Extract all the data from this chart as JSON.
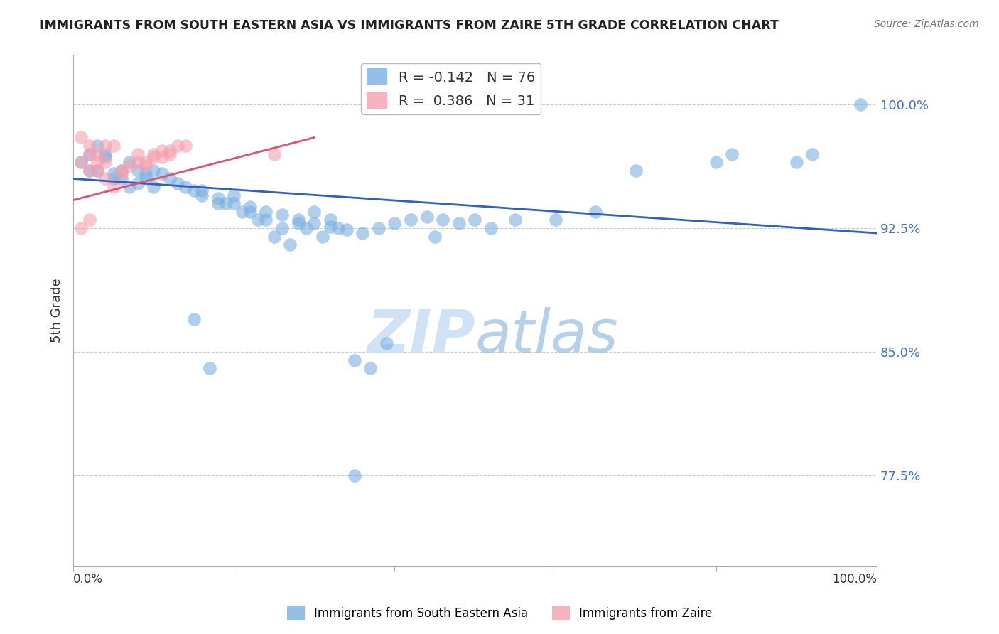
{
  "title": "IMMIGRANTS FROM SOUTH EASTERN ASIA VS IMMIGRANTS FROM ZAIRE 5TH GRADE CORRELATION CHART",
  "source": "Source: ZipAtlas.com",
  "ylabel": "5th Grade",
  "ytick_labels": [
    "77.5%",
    "85.0%",
    "92.5%",
    "100.0%"
  ],
  "ytick_values": [
    0.775,
    0.85,
    0.925,
    1.0
  ],
  "xlim": [
    0.0,
    1.0
  ],
  "ylim": [
    0.72,
    1.03
  ],
  "legend_blue_r": "-0.142",
  "legend_blue_n": "76",
  "legend_pink_r": "0.386",
  "legend_pink_n": "31",
  "blue_color": "#7ab0e0",
  "pink_color": "#f4a0b0",
  "blue_line_color": "#3060c0",
  "pink_line_color": "#e05070",
  "watermark_zip": "ZIP",
  "watermark_atlas": "atlas",
  "blue_scatter_x": [
    0.02,
    0.03,
    0.01,
    0.02,
    0.04,
    0.03,
    0.05,
    0.04,
    0.06,
    0.05,
    0.07,
    0.06,
    0.08,
    0.07,
    0.09,
    0.08,
    0.1,
    0.09,
    0.11,
    0.1,
    0.12,
    0.13,
    0.15,
    0.16,
    0.18,
    0.2,
    0.22,
    0.24,
    0.26,
    0.28,
    0.3,
    0.32,
    0.34,
    0.36,
    0.38,
    0.4,
    0.42,
    0.44,
    0.46,
    0.48,
    0.22,
    0.24,
    0.26,
    0.28,
    0.3,
    0.32,
    0.18,
    0.2,
    0.14,
    0.16,
    0.5,
    0.52,
    0.6,
    0.65,
    0.7,
    0.8,
    0.82,
    0.9,
    0.92,
    0.98,
    0.25,
    0.27,
    0.29,
    0.31,
    0.33,
    0.19,
    0.21,
    0.23,
    0.35,
    0.37,
    0.39,
    0.15,
    0.17,
    0.45,
    0.55,
    0.35
  ],
  "blue_scatter_y": [
    0.97,
    0.975,
    0.965,
    0.96,
    0.97,
    0.96,
    0.955,
    0.968,
    0.96,
    0.958,
    0.965,
    0.955,
    0.96,
    0.95,
    0.958,
    0.952,
    0.96,
    0.955,
    0.958,
    0.95,
    0.955,
    0.952,
    0.948,
    0.945,
    0.943,
    0.94,
    0.938,
    0.935,
    0.933,
    0.93,
    0.928,
    0.926,
    0.924,
    0.922,
    0.925,
    0.928,
    0.93,
    0.932,
    0.93,
    0.928,
    0.935,
    0.93,
    0.925,
    0.928,
    0.935,
    0.93,
    0.94,
    0.945,
    0.95,
    0.948,
    0.93,
    0.925,
    0.93,
    0.935,
    0.96,
    0.965,
    0.97,
    0.965,
    0.97,
    1.0,
    0.92,
    0.915,
    0.925,
    0.92,
    0.925,
    0.94,
    0.935,
    0.93,
    0.845,
    0.84,
    0.855,
    0.87,
    0.84,
    0.92,
    0.93,
    0.775
  ],
  "pink_scatter_x": [
    0.01,
    0.02,
    0.02,
    0.01,
    0.03,
    0.03,
    0.04,
    0.02,
    0.05,
    0.04,
    0.01,
    0.02,
    0.06,
    0.14,
    0.25,
    0.08,
    0.09,
    0.1,
    0.11,
    0.12,
    0.03,
    0.04,
    0.05,
    0.06,
    0.07,
    0.08,
    0.09,
    0.1,
    0.11,
    0.12,
    0.13
  ],
  "pink_scatter_y": [
    0.98,
    0.975,
    0.97,
    0.965,
    0.97,
    0.965,
    0.975,
    0.96,
    0.975,
    0.965,
    0.925,
    0.93,
    0.96,
    0.975,
    0.97,
    0.965,
    0.963,
    0.968,
    0.972,
    0.97,
    0.96,
    0.955,
    0.95,
    0.958,
    0.963,
    0.97,
    0.965,
    0.97,
    0.968,
    0.972,
    0.975
  ],
  "blue_line_x": [
    0.0,
    1.0
  ],
  "blue_line_y_start": 0.955,
  "blue_line_y_end": 0.922,
  "pink_line_x": [
    0.0,
    0.3
  ],
  "pink_line_y_start": 0.942,
  "pink_line_y_end": 0.98,
  "legend_label_blue": "Immigrants from South Eastern Asia",
  "legend_label_pink": "Immigrants from Zaire"
}
